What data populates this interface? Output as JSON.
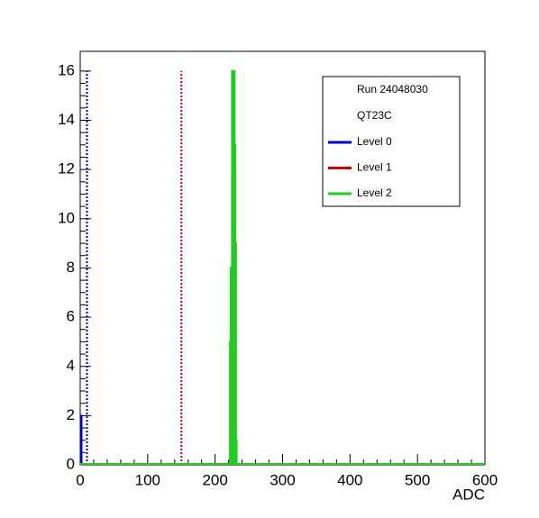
{
  "chart_data": {
    "type": "histogram",
    "xlabel": "ADC",
    "legend_title": [
      "Run 24048030",
      "QT23C"
    ],
    "xlim": [
      0,
      600
    ],
    "ylim": [
      0,
      16.8
    ],
    "xticks": [
      0,
      100,
      200,
      300,
      400,
      500,
      600
    ],
    "yticks": [
      0,
      2,
      4,
      6,
      8,
      10,
      12,
      14,
      16
    ],
    "series": [
      {
        "name": "Level 0",
        "color": "#0000cc",
        "bins": [
          1,
          2
        ],
        "values": [
          2
        ],
        "threshold": 10,
        "threshold_height": 16
      },
      {
        "name": "Level 1",
        "color": "#cc0000",
        "bins": [
          224,
          225
        ],
        "values": [
          0
        ],
        "threshold": 150,
        "threshold_height": 16
      },
      {
        "name": "Level 2",
        "color": "#22cc22",
        "bins": [
          221,
          222,
          223,
          224,
          225,
          226,
          227,
          228,
          229,
          230,
          231,
          232
        ],
        "values": [
          0,
          5,
          8,
          6,
          16,
          12,
          14,
          16,
          13,
          9,
          1
        ],
        "threshold": null,
        "threshold_height": null
      }
    ]
  }
}
